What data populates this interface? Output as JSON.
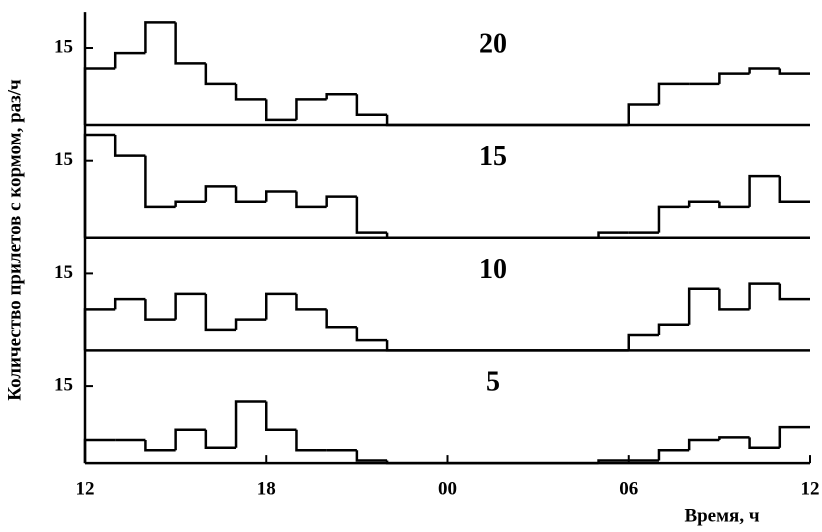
{
  "chart_data": [
    {
      "type": "histogram",
      "title": "20",
      "ylabel": "Количество прилетов с кормом, раз/ч",
      "bins": [
        12,
        13,
        14,
        15,
        16,
        17,
        18,
        19,
        20,
        21,
        22,
        23,
        24,
        25,
        26,
        27,
        28,
        29,
        30,
        31,
        32,
        33,
        34,
        35,
        36
      ],
      "values": [
        11,
        14,
        20,
        12,
        8,
        5,
        1,
        5,
        6,
        2,
        0,
        0,
        0,
        0,
        0,
        0,
        0,
        0,
        4,
        8,
        8,
        10,
        11,
        10
      ],
      "color": "#000000",
      "xlim": [
        12,
        36
      ],
      "ylim": [
        0,
        22
      ],
      "yticks": [
        15
      ]
    },
    {
      "type": "histogram",
      "title": "15",
      "bins": [
        12,
        13,
        14,
        15,
        16,
        17,
        18,
        19,
        20,
        21,
        22,
        23,
        24,
        25,
        26,
        27,
        28,
        29,
        30,
        31,
        32,
        33,
        34,
        35,
        36
      ],
      "values": [
        20,
        16,
        6,
        7,
        10,
        7,
        9,
        6,
        8,
        1,
        0,
        0,
        0,
        0,
        0,
        0,
        0,
        1,
        1,
        6,
        7,
        6,
        12,
        7
      ],
      "color": "#000000",
      "xlim": [
        12,
        36
      ],
      "ylim": [
        0,
        22
      ],
      "yticks": [
        15
      ]
    },
    {
      "type": "histogram",
      "title": "10",
      "bins": [
        12,
        13,
        14,
        15,
        16,
        17,
        18,
        19,
        20,
        21,
        22,
        23,
        24,
        25,
        26,
        27,
        28,
        29,
        30,
        31,
        32,
        33,
        34,
        35,
        36
      ],
      "values": [
        8,
        10,
        6,
        11,
        4,
        6,
        11,
        8,
        4.5,
        2,
        0,
        0,
        0,
        0,
        0,
        0,
        0,
        0,
        3,
        5,
        12,
        8,
        13,
        10
      ],
      "color": "#000000",
      "xlim": [
        12,
        36
      ],
      "ylim": [
        0,
        22
      ],
      "yticks": [
        15
      ]
    },
    {
      "type": "histogram",
      "title": "5",
      "xlabel": "Время, ч",
      "bins": [
        12,
        13,
        14,
        15,
        16,
        17,
        18,
        19,
        20,
        21,
        22,
        23,
        24,
        25,
        26,
        27,
        28,
        29,
        30,
        31,
        32,
        33,
        34,
        35,
        36
      ],
      "values": [
        4.5,
        4.5,
        2.5,
        6.5,
        3,
        12,
        6.5,
        2.5,
        2.5,
        0.5,
        0,
        0,
        0,
        0,
        0,
        0,
        0,
        0.5,
        0.5,
        2.5,
        4.5,
        5,
        3,
        7
      ],
      "color": "#000000",
      "xlim": [
        12,
        36
      ],
      "ylim": [
        0,
        22
      ],
      "yticks": [
        15
      ],
      "xticks": [
        12,
        18,
        {
          "value": 24,
          "label": "00"
        },
        {
          "value": 30,
          "label": "06"
        },
        {
          "value": 36,
          "label": "12"
        }
      ]
    }
  ]
}
